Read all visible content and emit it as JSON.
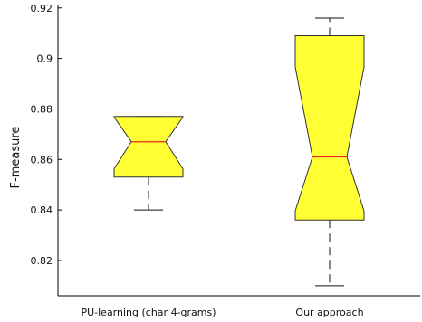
{
  "chart_data": {
    "type": "boxplot",
    "notched": true,
    "title": "",
    "xlabel": "",
    "ylabel": "F-measure",
    "ylim": [
      0.806,
      0.921
    ],
    "yticks": [
      0.82,
      0.84,
      0.86,
      0.88,
      0.9,
      0.92
    ],
    "ytick_labels": [
      "0.82",
      "0.84",
      "0.86",
      "0.88",
      "0.9",
      "0.92"
    ],
    "categories": [
      "PU-learning (char 4-grams)",
      "Our approach"
    ],
    "boxes": [
      {
        "label": "PU-learning (char 4-grams)",
        "whisker_low": 0.84,
        "q1": 0.853,
        "median": 0.867,
        "q3": 0.877,
        "whisker_high": 0.877,
        "notch_low": 0.8563,
        "notch_high": 0.8768
      },
      {
        "label": "Our approach",
        "whisker_low": 0.81,
        "q1": 0.836,
        "median": 0.861,
        "q3": 0.909,
        "whisker_high": 0.916,
        "notch_low": 0.8396,
        "notch_high": 0.8966
      }
    ],
    "grid": false,
    "colors": {
      "box_fill": "#ffff33",
      "box_edge": "#333333",
      "median": "#e8261e",
      "whisker": "#111111",
      "axis": "#000000"
    }
  }
}
